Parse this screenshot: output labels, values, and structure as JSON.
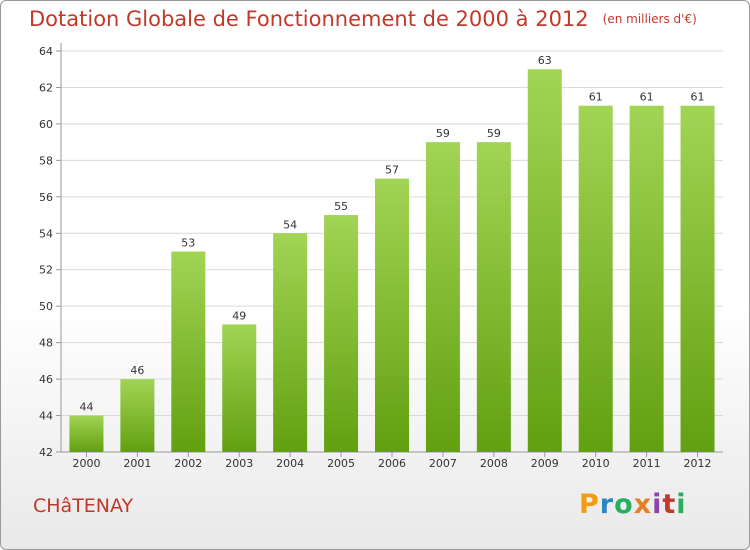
{
  "title": "Dotation Globale de Fonctionnement de 2000 à 2012",
  "unit": "(en milliers d'€)",
  "town": "CHâTENAY",
  "logo": {
    "letters": [
      "P",
      "r",
      "o",
      "x",
      "i",
      "t",
      "i"
    ],
    "colors": [
      "#f39c12",
      "#2e86c1",
      "#27ae60",
      "#e67e22",
      "#8e44ad",
      "#c0392b",
      "#27ae60"
    ]
  },
  "colors": {
    "bar_top": "#a2d455",
    "bar_bottom": "#62a010",
    "title": "#c0392b"
  },
  "chart_data": {
    "type": "bar",
    "title": "Dotation Globale de Fonctionnement de 2000 à 2012",
    "subtitle": "(en milliers d'€)",
    "categories": [
      "2000",
      "2001",
      "2002",
      "2003",
      "2004",
      "2005",
      "2006",
      "2007",
      "2008",
      "2009",
      "2010",
      "2011",
      "2012"
    ],
    "values": [
      44,
      46,
      53,
      49,
      54,
      55,
      57,
      59,
      59,
      63,
      61,
      61,
      61
    ],
    "ylim": [
      42,
      64
    ],
    "yticks": [
      42,
      44,
      46,
      48,
      50,
      52,
      54,
      56,
      58,
      60,
      62,
      64
    ],
    "grid": true,
    "legend": "none"
  }
}
